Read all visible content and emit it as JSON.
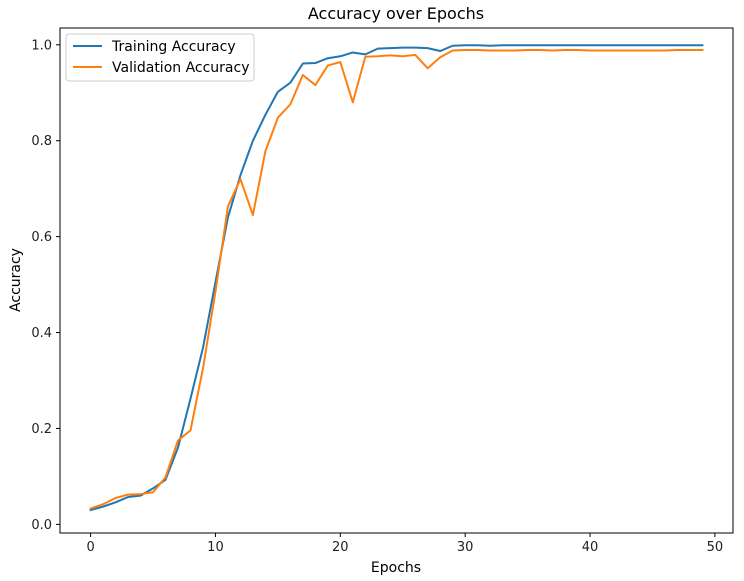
{
  "chart_data": {
    "type": "line",
    "title": "Accuracy over Epochs",
    "xlabel": "Epochs",
    "ylabel": "Accuracy",
    "xlim": [
      -2.45,
      51.45
    ],
    "ylim": [
      -0.018,
      1.035
    ],
    "xticks": [
      0,
      10,
      20,
      30,
      40,
      50
    ],
    "yticks": [
      0.0,
      0.2,
      0.4,
      0.6,
      0.8,
      1.0
    ],
    "ytick_labels": [
      "0.0",
      "0.2",
      "0.4",
      "0.6",
      "0.8",
      "1.0"
    ],
    "grid": false,
    "legend": "top-left",
    "x": [
      0,
      1,
      2,
      3,
      4,
      5,
      6,
      7,
      8,
      9,
      10,
      11,
      12,
      13,
      14,
      15,
      16,
      17,
      18,
      19,
      20,
      21,
      22,
      23,
      24,
      25,
      26,
      27,
      28,
      29,
      30,
      31,
      32,
      33,
      34,
      35,
      36,
      37,
      38,
      39,
      40,
      41,
      42,
      43,
      44,
      45,
      46,
      47,
      48,
      49
    ],
    "series": [
      {
        "name": "Training Accuracy",
        "color": "#1f77b4",
        "values": [
          0.03,
          0.037,
          0.046,
          0.057,
          0.06,
          0.075,
          0.093,
          0.16,
          0.262,
          0.368,
          0.505,
          0.64,
          0.728,
          0.8,
          0.854,
          0.902,
          0.921,
          0.961,
          0.962,
          0.972,
          0.976,
          0.984,
          0.98,
          0.992,
          0.993,
          0.994,
          0.994,
          0.993,
          0.987,
          0.998,
          0.999,
          0.999,
          0.998,
          0.999,
          0.999,
          0.999,
          0.999,
          0.999,
          0.999,
          0.999,
          0.999,
          0.999,
          0.999,
          0.999,
          0.999,
          0.999,
          0.999,
          0.999,
          0.999,
          0.999
        ]
      },
      {
        "name": "Validation Accuracy",
        "color": "#ff7f0e",
        "values": [
          0.033,
          0.042,
          0.055,
          0.062,
          0.063,
          0.067,
          0.098,
          0.175,
          0.196,
          0.325,
          0.485,
          0.663,
          0.72,
          0.645,
          0.778,
          0.848,
          0.876,
          0.937,
          0.916,
          0.957,
          0.964,
          0.88,
          0.975,
          0.976,
          0.978,
          0.976,
          0.979,
          0.951,
          0.974,
          0.988,
          0.989,
          0.989,
          0.988,
          0.988,
          0.988,
          0.989,
          0.989,
          0.988,
          0.989,
          0.989,
          0.988,
          0.988,
          0.988,
          0.988,
          0.988,
          0.988,
          0.988,
          0.989,
          0.989,
          0.989
        ]
      }
    ]
  }
}
